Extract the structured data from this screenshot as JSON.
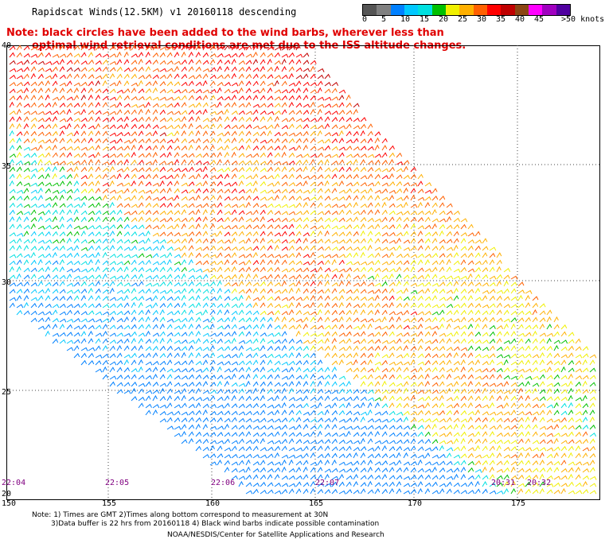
{
  "header": {
    "title": "Rapidscat Winds(12.5KM) v1 20160118 descending",
    "note_line1": "Note: black circles have been added to the wind barbs, wherever less than",
    "note_line2": "optimal wind retrieval conditions are met due to the ISS altitude changes."
  },
  "legend": {
    "colors": [
      "#555555",
      "#808080",
      "#0080ff",
      "#00c8ff",
      "#00e0e0",
      "#00c000",
      "#f0f000",
      "#ffb000",
      "#ff6000",
      "#ff0000",
      "#c00000",
      "#8b4513",
      "#ff00ff",
      "#a000c0",
      "#5000a0"
    ],
    "labels": [
      "0",
      "5",
      "10",
      "15",
      "20",
      "25",
      "30",
      "35",
      "40",
      "45",
      ">50 knots"
    ]
  },
  "map": {
    "latitudes": [
      "40",
      "35",
      "30",
      "25",
      "20"
    ],
    "longitudes": [
      "150",
      "155",
      "160",
      "165",
      "170",
      "175"
    ],
    "times": [
      "22:04",
      "22:05",
      "22:06",
      "22:07",
      "20:31",
      "20:32"
    ]
  },
  "footer": {
    "line1": "Note: 1) Times are GMT 2)Times along bottom correspond to measurement at 30N",
    "line2": "3)Data buffer is 22 hrs from 20160118 4) Black wind barbs indicate possible contamination",
    "line3": "NOAA/NESDIS/Center for Satellite Applications and Research"
  }
}
